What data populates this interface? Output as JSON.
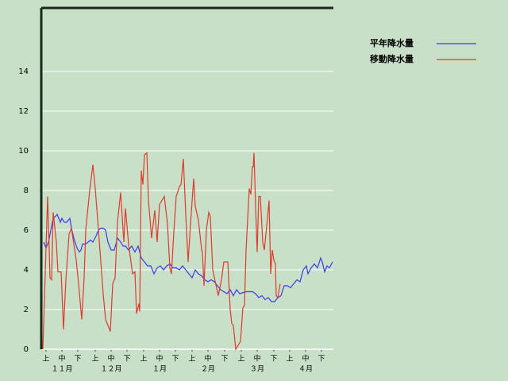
{
  "chart_data": {
    "type": "line",
    "xlim": [
      0,
      184
    ],
    "ylim": [
      0,
      17.2
    ],
    "yticks": [
      0,
      2,
      4,
      6,
      8,
      10,
      12,
      14
    ],
    "xticks": [
      {
        "value": 3,
        "label": "上"
      },
      {
        "value": 13,
        "label": "中"
      },
      {
        "value": 23,
        "label": "下"
      },
      {
        "value": 34,
        "label": "上"
      },
      {
        "value": 44,
        "label": "中"
      },
      {
        "value": 54,
        "label": "下"
      },
      {
        "value": 64.5,
        "label": "上"
      },
      {
        "value": 74.5,
        "label": "中"
      },
      {
        "value": 84.5,
        "label": "下"
      },
      {
        "value": 95,
        "label": "上"
      },
      {
        "value": 105,
        "label": "中"
      },
      {
        "value": 115.5,
        "label": "下"
      },
      {
        "value": 126,
        "label": "上"
      },
      {
        "value": 136,
        "label": "中"
      },
      {
        "value": 146.5,
        "label": "下"
      },
      {
        "value": 156.5,
        "label": "上"
      },
      {
        "value": 166.5,
        "label": "中"
      },
      {
        "value": 176.5,
        "label": "下"
      }
    ],
    "month_ticks": [
      {
        "value": 13,
        "label": "１１月"
      },
      {
        "value": 44,
        "label": "１２月"
      },
      {
        "value": 74.5,
        "label": "１月"
      },
      {
        "value": 105,
        "label": "２月"
      },
      {
        "value": 136,
        "label": "３月"
      },
      {
        "value": 166.5,
        "label": "４月"
      }
    ],
    "grid": true,
    "legend": "right",
    "series": [
      {
        "name": "平年降水量",
        "color": "#3a3af0",
        "x": [
          1.5,
          3,
          4.5,
          6,
          7.5,
          9,
          10,
          12,
          13,
          14.5,
          16,
          18,
          19,
          20.5,
          22.5,
          24,
          25,
          26,
          28,
          29.5,
          31,
          32.5,
          34.5,
          36,
          37.5,
          39,
          40.5,
          42,
          44,
          46,
          48,
          50,
          51.5,
          53,
          55,
          57,
          59,
          61,
          63,
          65,
          67,
          69,
          71,
          73,
          75,
          77,
          79,
          81,
          83,
          85,
          87,
          89,
          91,
          93,
          95,
          97,
          99,
          101,
          103,
          105,
          107,
          109,
          111,
          113,
          115,
          117,
          119,
          121,
          123,
          125,
          129,
          133,
          135,
          137,
          139,
          141,
          143,
          145,
          147,
          149,
          151,
          153,
          155,
          157,
          159,
          161,
          163,
          165,
          167,
          168,
          170,
          172,
          174,
          176,
          177,
          178.5,
          180,
          181.5,
          183.5
        ],
        "values": [
          5.4,
          5.1,
          5.4,
          6.0,
          6.6,
          6.7,
          6.8,
          6.4,
          6.6,
          6.4,
          6.4,
          6.6,
          6.1,
          5.6,
          5.1,
          4.9,
          5.0,
          5.3,
          5.3,
          5.4,
          5.5,
          5.4,
          5.7,
          6.0,
          6.1,
          6.1,
          6.0,
          5.4,
          5.0,
          5.0,
          5.6,
          5.4,
          5.2,
          5.2,
          5.0,
          5.2,
          4.9,
          5.2,
          4.6,
          4.4,
          4.2,
          4.2,
          3.8,
          4.1,
          4.2,
          4.0,
          4.2,
          4.3,
          4.1,
          4.1,
          4.0,
          4.2,
          4.0,
          3.8,
          3.6,
          4.0,
          3.8,
          3.7,
          3.5,
          3.4,
          3.5,
          3.4,
          3.2,
          3.0,
          2.9,
          2.8,
          3.0,
          2.7,
          3.0,
          2.8,
          2.9,
          2.9,
          2.8,
          2.6,
          2.7,
          2.5,
          2.6,
          2.4,
          2.4,
          2.6,
          2.7,
          3.2,
          3.2,
          3.1,
          3.3,
          3.5,
          3.4,
          4.0,
          4.2,
          3.8,
          4.1,
          4.3,
          4.1,
          4.6,
          4.4,
          3.9,
          4.2,
          4.1,
          4.4
        ]
      },
      {
        "name": "移動降水量",
        "color": "#e03a2a",
        "x": [
          1,
          4,
          5.5,
          6.5,
          7.5,
          9.5,
          10.5,
          12.5,
          14,
          15.5,
          17.5,
          19,
          22,
          23.5,
          25.5,
          27,
          28,
          30.5,
          32.5,
          34,
          36.5,
          39,
          40.5,
          42,
          43.5,
          45,
          46.5,
          48,
          50,
          52,
          53,
          55,
          57.5,
          59,
          60,
          61.5,
          62,
          63,
          64,
          65,
          66.5,
          67.5,
          69.5,
          71.5,
          73,
          74.5,
          76,
          77.5,
          79.5,
          81,
          82,
          83.5,
          85,
          87,
          88,
          89.5,
          91,
          92.5,
          94,
          96,
          97,
          99,
          101,
          101.5,
          102.5,
          104,
          105.5,
          106.5,
          108,
          111.5,
          113.5,
          115,
          117.5,
          119,
          120,
          121,
          122.5,
          124,
          125.5,
          127,
          128,
          129,
          131,
          132,
          133,
          133.5,
          134,
          135,
          136,
          137,
          138,
          139.5,
          140.5,
          142,
          143.5,
          144.5,
          145.5,
          146.5,
          147.5,
          148,
          149,
          150.5
        ],
        "values": [
          0,
          7.7,
          3.6,
          3.5,
          6.9,
          5.4,
          3.9,
          3.9,
          1.0,
          3.5,
          5.8,
          6.1,
          4.5,
          3.3,
          1.5,
          3.6,
          6.0,
          8.0,
          9.3,
          8.1,
          5.5,
          2.8,
          1.5,
          1.2,
          0.9,
          3.3,
          3.6,
          6.4,
          7.9,
          5.4,
          7.1,
          5.3,
          3.8,
          3.9,
          1.8,
          2.3,
          1.9,
          9.0,
          8.3,
          9.8,
          9.9,
          7.5,
          5.6,
          7.0,
          5.4,
          7.3,
          7.5,
          7.7,
          6.3,
          4.1,
          3.8,
          5.9,
          7.7,
          8.2,
          8.3,
          9.6,
          6.8,
          4.4,
          6.3,
          8.6,
          7.2,
          6.5,
          5.0,
          4.9,
          3.2,
          6.0,
          6.9,
          6.7,
          4.0,
          2.7,
          3.5,
          4.4,
          4.4,
          2.0,
          1.3,
          1.2,
          0,
          0.2,
          0.4,
          2.1,
          2.2,
          5.0,
          8.1,
          7.8,
          9.2,
          9.2,
          9.9,
          7.2,
          4.9,
          7.7,
          7.7,
          5.4,
          5.0,
          6.2,
          7.5,
          3.8,
          5.0,
          4.5,
          4.3,
          2.7,
          2.6,
          3.3
        ]
      }
    ]
  }
}
